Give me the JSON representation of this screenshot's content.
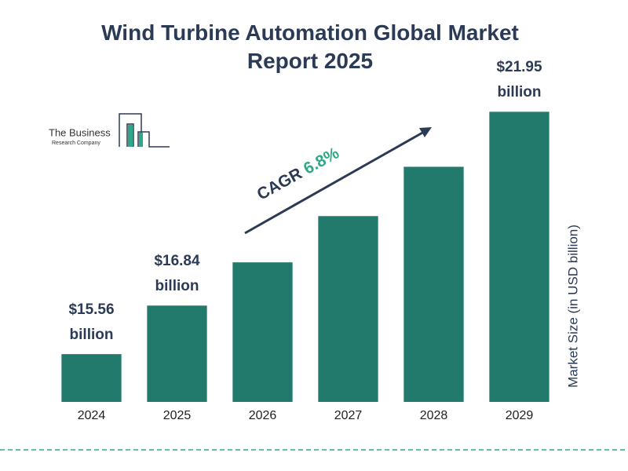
{
  "chart_data": {
    "type": "bar",
    "title": "Wind Turbine Automation Global Market Report 2025",
    "y_label": "Market Size (in USD billion)",
    "categories": [
      "2024",
      "2025",
      "2026",
      "2027",
      "2028",
      "2029"
    ],
    "values": [
      15.56,
      16.84,
      17.98,
      19.2,
      20.5,
      21.95
    ],
    "value_labels": [
      "$15.56 billion",
      "$16.84 billion",
      null,
      null,
      null,
      "$21.95 billion"
    ],
    "color": "#217a6b",
    "ylim": [
      14.3,
      22.6
    ],
    "annotation": {
      "text": "CAGR",
      "value": "6.8%"
    },
    "logo": {
      "line1": "The Business",
      "line2": "Research Company"
    }
  }
}
